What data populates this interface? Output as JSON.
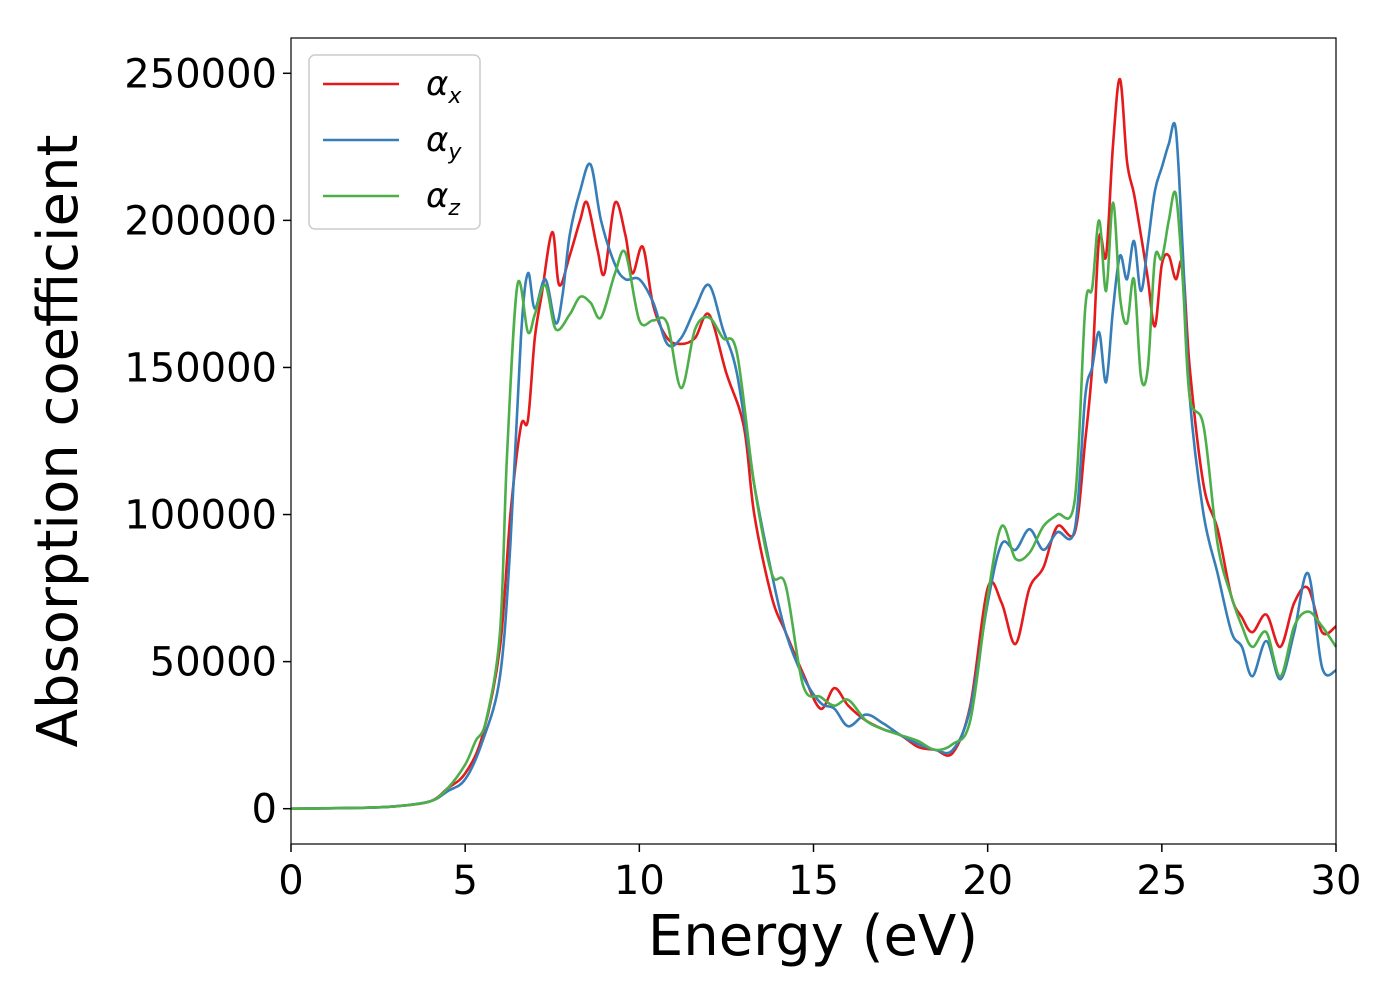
{
  "chart_data": {
    "type": "line",
    "title": "",
    "xlabel": "Energy (eV)",
    "ylabel": "Absorption coefficient",
    "xlim": [
      0,
      30
    ],
    "ylim": [
      -12000,
      262000
    ],
    "xticks": [
      0,
      5,
      10,
      15,
      20,
      25,
      30
    ],
    "yticks": [
      0,
      50000,
      100000,
      150000,
      200000,
      250000
    ],
    "grid": false,
    "legend": "top-left",
    "series": [
      {
        "name": "αx",
        "symbol": "α",
        "sub": "x",
        "color": "#e41a1c",
        "x": [
          0,
          2,
          3,
          4,
          4.5,
          5,
          5.5,
          6,
          6.3,
          6.6,
          6.8,
          7,
          7.2,
          7.5,
          7.7,
          8,
          8.3,
          8.5,
          8.8,
          9,
          9.3,
          9.6,
          9.8,
          10.1,
          10.4,
          10.8,
          11.2,
          11.6,
          12,
          12.5,
          13,
          13.3,
          13.8,
          14.2,
          14.7,
          15.2,
          15.6,
          16,
          16.5,
          17,
          17.5,
          18,
          18.5,
          19,
          19.5,
          20,
          20.4,
          20.8,
          21.2,
          21.6,
          22,
          22.5,
          22.8,
          23,
          23.2,
          23.4,
          23.6,
          23.8,
          24,
          24.2,
          24.4,
          24.6,
          24.8,
          25,
          25.2,
          25.4,
          25.6,
          25.8,
          26.2,
          26.6,
          27,
          27.3,
          27.6,
          28,
          28.4,
          28.8,
          29.2,
          29.6,
          30
        ],
        "y": [
          0,
          300,
          800,
          2500,
          7000,
          12000,
          25000,
          55000,
          100000,
          130000,
          132000,
          160000,
          175000,
          196000,
          178000,
          188000,
          200000,
          206000,
          190000,
          182000,
          206000,
          195000,
          182000,
          191000,
          171000,
          160000,
          158000,
          160000,
          168000,
          148000,
          130000,
          100000,
          72000,
          60000,
          46000,
          34000,
          41000,
          35000,
          30000,
          27000,
          25000,
          21000,
          20000,
          19000,
          35000,
          75000,
          70000,
          56000,
          75000,
          82000,
          96000,
          94000,
          125000,
          150000,
          194000,
          188000,
          226000,
          248000,
          220000,
          209000,
          195000,
          180000,
          164000,
          185000,
          188000,
          180000,
          185000,
          150000,
          110000,
          95000,
          72000,
          65000,
          60000,
          66000,
          55000,
          70000,
          75000,
          60000,
          62000
        ]
      },
      {
        "name": "αy",
        "symbol": "α",
        "sub": "y",
        "color": "#377eb8",
        "x": [
          0,
          2,
          3,
          4,
          4.5,
          5,
          5.5,
          6,
          6.3,
          6.6,
          6.8,
          7,
          7.3,
          7.6,
          7.8,
          8,
          8.3,
          8.6,
          8.9,
          9.3,
          9.6,
          10,
          10.4,
          10.8,
          11.2,
          11.6,
          12,
          12.4,
          12.8,
          13.3,
          13.8,
          14.2,
          14.7,
          15.2,
          15.6,
          16,
          16.5,
          17,
          17.5,
          18,
          18.5,
          19,
          19.5,
          20,
          20.4,
          20.8,
          21.2,
          21.6,
          22,
          22.5,
          22.8,
          23,
          23.2,
          23.4,
          23.6,
          23.8,
          24,
          24.2,
          24.4,
          24.6,
          24.8,
          25,
          25.2,
          25.4,
          25.6,
          25.8,
          26.2,
          26.6,
          27,
          27.3,
          27.6,
          28,
          28.4,
          28.8,
          29.2,
          29.6,
          30
        ],
        "y": [
          0,
          300,
          800,
          2500,
          6000,
          10000,
          23000,
          45000,
          90000,
          160000,
          182000,
          170000,
          180000,
          165000,
          175000,
          195000,
          210000,
          219000,
          200000,
          185000,
          180000,
          180000,
          172000,
          158000,
          160000,
          170000,
          178000,
          163000,
          148000,
          110000,
          80000,
          60000,
          45000,
          36000,
          34000,
          28000,
          32000,
          29000,
          25000,
          22000,
          20000,
          20000,
          34000,
          70000,
          90000,
          88000,
          95000,
          88000,
          94000,
          95000,
          140000,
          150000,
          162000,
          145000,
          170000,
          188000,
          180000,
          193000,
          176000,
          192000,
          210000,
          218000,
          226000,
          231000,
          190000,
          140000,
          100000,
          80000,
          60000,
          55000,
          45000,
          57000,
          44000,
          60000,
          80000,
          48000,
          47000
        ]
      },
      {
        "name": "αz",
        "symbol": "α",
        "sub": "z",
        "color": "#4daf4a",
        "x": [
          0,
          2,
          3,
          4,
          4.5,
          5,
          5.3,
          5.6,
          6,
          6.2,
          6.5,
          6.8,
          7,
          7.3,
          7.6,
          8,
          8.3,
          8.6,
          8.9,
          9.3,
          9.6,
          10,
          10.4,
          10.8,
          11.2,
          11.6,
          12,
          12.4,
          12.8,
          13.3,
          13.8,
          14.2,
          14.7,
          15.2,
          15.6,
          16,
          16.5,
          17,
          17.5,
          18,
          18.5,
          19,
          19.5,
          20,
          20.4,
          20.8,
          21.2,
          21.6,
          22,
          22.5,
          22.8,
          23,
          23.2,
          23.4,
          23.6,
          23.8,
          24,
          24.2,
          24.4,
          24.6,
          24.8,
          25,
          25.2,
          25.4,
          25.6,
          25.8,
          26.2,
          26.6,
          27,
          27.3,
          27.6,
          28,
          28.4,
          28.8,
          29.2,
          29.6,
          30
        ],
        "y": [
          0,
          300,
          800,
          2500,
          7000,
          15000,
          23000,
          30000,
          60000,
          120000,
          178000,
          162000,
          168000,
          178000,
          163000,
          168000,
          174000,
          172000,
          167000,
          182000,
          189000,
          166000,
          166000,
          165000,
          143000,
          163000,
          167000,
          160000,
          155000,
          110000,
          80000,
          76000,
          42000,
          38000,
          35000,
          37000,
          30000,
          27000,
          25000,
          23000,
          20000,
          22000,
          30000,
          72000,
          96000,
          85000,
          87000,
          96000,
          100000,
          105000,
          170000,
          177000,
          200000,
          176000,
          206000,
          174000,
          165000,
          180000,
          147000,
          150000,
          187000,
          187000,
          200000,
          209000,
          180000,
          140000,
          130000,
          90000,
          72000,
          62000,
          55000,
          60000,
          45000,
          62000,
          67000,
          62000,
          55000
        ]
      }
    ]
  }
}
